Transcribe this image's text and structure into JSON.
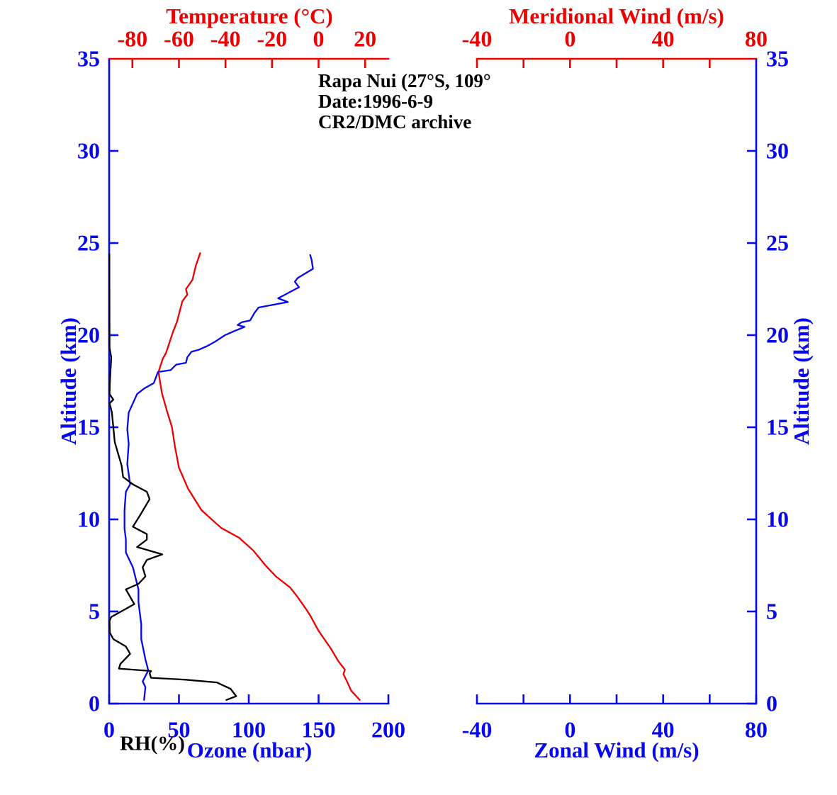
{
  "page": {
    "background": "#ffffff"
  },
  "chart_data": {
    "type": "line",
    "station_annotation": [
      "Rapa Nui (27°S, 109°",
      "Date:1996-6-9",
      "CR2/DMC archive"
    ],
    "panels": [
      {
        "name": "temperature-ozone-rh-panel",
        "axes": {
          "top": {
            "label": "Temperature (°C)",
            "color": "#ee0000",
            "range": [
              -90,
              30
            ],
            "ticks": [
              -80,
              -60,
              -40,
              -20,
              0,
              20
            ]
          },
          "bottom": {
            "label": "Ozone (nbar)",
            "secondary_label": "RH(%)",
            "secondary_label_color": "#000000",
            "color": "#0808ee",
            "range": [
              0,
              200
            ],
            "ticks": [
              0,
              50,
              100,
              150,
              200
            ]
          },
          "left": {
            "label": "Altitude (km)",
            "color": "#0808ee",
            "range": [
              0,
              35
            ],
            "ticks": [
              0,
              5,
              10,
              15,
              20,
              25,
              30,
              35
            ]
          }
        },
        "series": [
          {
            "name": "Temperature",
            "units": "°C vs km",
            "color": "#ee0000",
            "x_axis": "top",
            "points": [
              [
                17.7,
                0.2
              ],
              [
                14.0,
                0.7
              ],
              [
                12.2,
                1.2
              ],
              [
                10.7,
                1.6
              ],
              [
                11.3,
                1.85
              ],
              [
                8.5,
                2.3
              ],
              [
                5.2,
                3.0
              ],
              [
                0.0,
                3.95
              ],
              [
                -3.7,
                4.8
              ],
              [
                -5.2,
                5.1
              ],
              [
                -9.1,
                5.8
              ],
              [
                -12.2,
                6.3
              ],
              [
                -18.3,
                6.9
              ],
              [
                -22.8,
                7.5
              ],
              [
                -28.0,
                8.3
              ],
              [
                -34.1,
                9.0
              ],
              [
                -42.0,
                9.55
              ],
              [
                -50.3,
                10.5
              ],
              [
                -56.0,
                11.65
              ],
              [
                -60.0,
                12.8
              ],
              [
                -61.8,
                14.0
              ],
              [
                -63.0,
                15.0
              ],
              [
                -65.2,
                15.9
              ],
              [
                -67.3,
                16.85
              ],
              [
                -68.8,
                18.0
              ],
              [
                -67.0,
                18.7
              ],
              [
                -65.5,
                19.05
              ],
              [
                -63.4,
                19.85
              ],
              [
                -62.5,
                20.2
              ],
              [
                -60.9,
                20.7
              ],
              [
                -58.5,
                21.85
              ],
              [
                -56.4,
                22.2
              ],
              [
                -57.0,
                22.5
              ],
              [
                -54.2,
                23.0
              ],
              [
                -52.7,
                23.8
              ],
              [
                -50.9,
                24.45
              ]
            ]
          },
          {
            "name": "Ozone",
            "units": "nbar vs km",
            "color": "#0808ee",
            "x_axis": "bottom",
            "points": [
              [
                25,
                0.2
              ],
              [
                26,
                0.9
              ],
              [
                24,
                1.2
              ],
              [
                28,
                1.8
              ],
              [
                26,
                2.4
              ],
              [
                23,
                3.5
              ],
              [
                23,
                4.3
              ],
              [
                21,
                5.5
              ],
              [
                21,
                6.2
              ],
              [
                17,
                7.4
              ],
              [
                12,
                8.2
              ],
              [
                12,
                8.9
              ],
              [
                11,
                9.5
              ],
              [
                11,
                10.5
              ],
              [
                12,
                11.5
              ],
              [
                15,
                11.9
              ],
              [
                13,
                13.0
              ],
              [
                14,
                14.1
              ],
              [
                13,
                14.9
              ],
              [
                14,
                15.8
              ],
              [
                17,
                16.3
              ],
              [
                20,
                16.8
              ],
              [
                25,
                17.1
              ],
              [
                32,
                17.4
              ],
              [
                35,
                18.0
              ],
              [
                44,
                18.1
              ],
              [
                48,
                18.4
              ],
              [
                55,
                18.5
              ],
              [
                56,
                18.8
              ],
              [
                59,
                19.1
              ],
              [
                64,
                19.2
              ],
              [
                70,
                19.4
              ],
              [
                76,
                19.65
              ],
              [
                79,
                19.8
              ],
              [
                83,
                20.0
              ],
              [
                89,
                20.2
              ],
              [
                97,
                20.45
              ],
              [
                92,
                20.55
              ],
              [
                95,
                20.7
              ],
              [
                101,
                20.8
              ],
              [
                104,
                21.2
              ],
              [
                107,
                21.5
              ],
              [
                128,
                21.8
              ],
              [
                121,
                22.0
              ],
              [
                136,
                22.6
              ],
              [
                133,
                22.9
              ],
              [
                135,
                23.1
              ],
              [
                146,
                23.6
              ],
              [
                145,
                24.1
              ],
              [
                144,
                24.35
              ]
            ]
          },
          {
            "name": "Relative Humidity",
            "units": "% (read on 0–200 bottom scale) vs km",
            "color": "#000000",
            "x_axis": "bottom",
            "points": [
              [
                84,
                0.2
              ],
              [
                91,
                0.4
              ],
              [
                87,
                0.8
              ],
              [
                77,
                1.15
              ],
              [
                54,
                1.3
              ],
              [
                30,
                1.4
              ],
              [
                29,
                1.65
              ],
              [
                30,
                1.77
              ],
              [
                7,
                1.9
              ],
              [
                8,
                2.15
              ],
              [
                15,
                2.7
              ],
              [
                12,
                3.1
              ],
              [
                3,
                3.5
              ],
              [
                0.5,
                3.85
              ],
              [
                0.3,
                4.5
              ],
              [
                1.5,
                4.7
              ],
              [
                18,
                5.4
              ],
              [
                12,
                6.2
              ],
              [
                21,
                6.5
              ],
              [
                26,
                6.9
              ],
              [
                24,
                7.4
              ],
              [
                27,
                7.8
              ],
              [
                38,
                8.1
              ],
              [
                20,
                8.5
              ],
              [
                27,
                8.9
              ],
              [
                27,
                9.2
              ],
              [
                17,
                9.6
              ],
              [
                22,
                10.2
              ],
              [
                29,
                11.1
              ],
              [
                27,
                11.5
              ],
              [
                17,
                11.9
              ],
              [
                10,
                12.3
              ],
              [
                9,
                12.9
              ],
              [
                4,
                14.2
              ],
              [
                3,
                15.0
              ],
              [
                2,
                15.8
              ],
              [
                0.3,
                16.3
              ],
              [
                3,
                16.5
              ],
              [
                0.3,
                16.8
              ],
              [
                0.5,
                17.4
              ],
              [
                1.5,
                18.8
              ],
              [
                0.3,
                19.3
              ],
              [
                0.2,
                22.8
              ],
              [
                0.2,
                24.4
              ]
            ]
          }
        ]
      },
      {
        "name": "wind-panel",
        "axes": {
          "top": {
            "label": "Meridional Wind (m/s)",
            "color": "#ee0000",
            "range": [
              -40,
              80
            ],
            "ticks": [
              -40,
              -20,
              0,
              20,
              40,
              60,
              80
            ],
            "labeled": [
              -40,
              0,
              40,
              80
            ]
          },
          "bottom": {
            "label": "Zonal Wind (m/s)",
            "color": "#0808ee",
            "range": [
              -40,
              80
            ],
            "ticks": [
              -40,
              -20,
              0,
              20,
              40,
              60,
              80
            ],
            "labeled": [
              -40,
              0,
              40,
              80
            ]
          },
          "right": {
            "label": "Altitude (km)",
            "color": "#0808ee",
            "range": [
              0,
              35
            ],
            "ticks": [
              0,
              5,
              10,
              15,
              20,
              25,
              30,
              35
            ]
          }
        },
        "series": []
      }
    ]
  }
}
